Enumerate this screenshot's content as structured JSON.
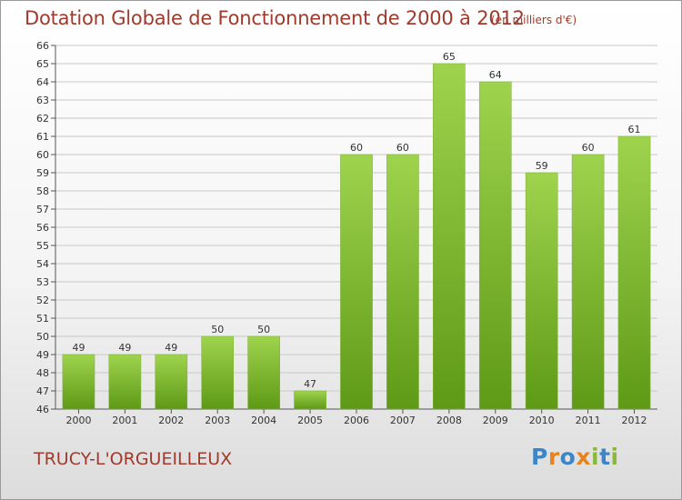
{
  "header": {
    "title": "Dotation Globale de Fonctionnement de 2000 à 2012",
    "subtitle": "(en milliers d'€)"
  },
  "footer": {
    "commune": "TRUCY-L'ORGUEILLEUX",
    "logo_letters": [
      "P",
      "r",
      "o",
      "x",
      "i",
      "t",
      "i"
    ]
  },
  "colors": {
    "bar_top": "#9fd34e",
    "bar_bottom": "#5e9a16",
    "title": "#a03a2c",
    "grid": "#c8c8c8"
  },
  "chart_data": {
    "type": "bar",
    "title": "Dotation Globale de Fonctionnement de 2000 à 2012",
    "subtitle": "(en milliers d'€)",
    "categories": [
      "2000",
      "2001",
      "2002",
      "2003",
      "2004",
      "2005",
      "2006",
      "2007",
      "2008",
      "2009",
      "2010",
      "2011",
      "2012"
    ],
    "values": [
      49,
      49,
      49,
      50,
      50,
      47,
      60,
      60,
      65,
      64,
      59,
      60,
      61
    ],
    "ylim": [
      46,
      66
    ],
    "yticks": [
      46,
      47,
      48,
      49,
      50,
      51,
      52,
      53,
      54,
      55,
      56,
      57,
      58,
      59,
      60,
      61,
      62,
      63,
      64,
      65,
      66
    ],
    "grid": true,
    "data_labels": true
  }
}
